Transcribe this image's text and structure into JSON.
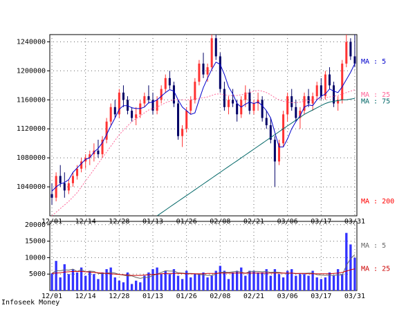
{
  "chart_data": [
    {
      "type": "candlestick",
      "title": "",
      "date_ticks": [
        "12/01",
        "12/14",
        "12/28",
        "01/13",
        "01/26",
        "02/08",
        "02/21",
        "03/06",
        "03/17",
        "03/31"
      ],
      "y_ticks": [
        1040000,
        1080000,
        1120000,
        1160000,
        1200000,
        1240000
      ],
      "ylim": [
        1000000,
        1250000
      ],
      "grid": true,
      "ohlc": [
        [
          1030000,
          1045000,
          1015000,
          1025000
        ],
        [
          1025000,
          1060000,
          1020000,
          1055000
        ],
        [
          1055000,
          1070000,
          1040000,
          1045000
        ],
        [
          1045000,
          1060000,
          1025000,
          1035000
        ],
        [
          1035000,
          1050000,
          1030000,
          1045000
        ],
        [
          1045000,
          1060000,
          1040000,
          1055000
        ],
        [
          1055000,
          1070000,
          1050000,
          1065000
        ],
        [
          1065000,
          1080000,
          1060000,
          1075000
        ],
        [
          1075000,
          1085000,
          1065000,
          1080000
        ],
        [
          1080000,
          1090000,
          1070000,
          1085000
        ],
        [
          1085000,
          1100000,
          1075000,
          1090000
        ],
        [
          1090000,
          1105000,
          1080000,
          1085000
        ],
        [
          1085000,
          1110000,
          1080000,
          1105000
        ],
        [
          1105000,
          1135000,
          1100000,
          1130000
        ],
        [
          1130000,
          1155000,
          1125000,
          1150000
        ],
        [
          1150000,
          1160000,
          1135000,
          1140000
        ],
        [
          1140000,
          1175000,
          1135000,
          1170000
        ],
        [
          1170000,
          1180000,
          1150000,
          1160000
        ],
        [
          1160000,
          1165000,
          1140000,
          1145000
        ],
        [
          1145000,
          1150000,
          1130000,
          1135000
        ],
        [
          1135000,
          1150000,
          1125000,
          1140000
        ],
        [
          1140000,
          1160000,
          1135000,
          1155000
        ],
        [
          1155000,
          1170000,
          1150000,
          1165000
        ],
        [
          1165000,
          1180000,
          1155000,
          1160000
        ],
        [
          1160000,
          1170000,
          1140000,
          1145000
        ],
        [
          1145000,
          1165000,
          1140000,
          1160000
        ],
        [
          1160000,
          1180000,
          1155000,
          1175000
        ],
        [
          1175000,
          1195000,
          1170000,
          1190000
        ],
        [
          1190000,
          1200000,
          1175000,
          1180000
        ],
        [
          1180000,
          1185000,
          1150000,
          1155000
        ],
        [
          1155000,
          1160000,
          1105000,
          1110000
        ],
        [
          1110000,
          1125000,
          1095000,
          1120000
        ],
        [
          1120000,
          1150000,
          1115000,
          1145000
        ],
        [
          1145000,
          1165000,
          1140000,
          1160000
        ],
        [
          1160000,
          1190000,
          1155000,
          1185000
        ],
        [
          1185000,
          1215000,
          1180000,
          1210000
        ],
        [
          1210000,
          1225000,
          1190000,
          1195000
        ],
        [
          1195000,
          1210000,
          1185000,
          1205000
        ],
        [
          1205000,
          1250000,
          1200000,
          1245000
        ],
        [
          1245000,
          1250000,
          1215000,
          1220000
        ],
        [
          1220000,
          1225000,
          1170000,
          1175000
        ],
        [
          1175000,
          1185000,
          1145000,
          1150000
        ],
        [
          1150000,
          1165000,
          1140000,
          1160000
        ],
        [
          1160000,
          1175000,
          1150000,
          1155000
        ],
        [
          1155000,
          1160000,
          1130000,
          1140000
        ],
        [
          1140000,
          1165000,
          1135000,
          1160000
        ],
        [
          1160000,
          1180000,
          1150000,
          1170000
        ],
        [
          1170000,
          1175000,
          1140000,
          1145000
        ],
        [
          1145000,
          1160000,
          1140000,
          1155000
        ],
        [
          1155000,
          1170000,
          1145000,
          1160000
        ],
        [
          1160000,
          1165000,
          1130000,
          1135000
        ],
        [
          1135000,
          1145000,
          1120000,
          1125000
        ],
        [
          1125000,
          1135000,
          1100000,
          1105000
        ],
        [
          1105000,
          1110000,
          1040000,
          1075000
        ],
        [
          1075000,
          1105000,
          1070000,
          1100000
        ],
        [
          1100000,
          1145000,
          1095000,
          1140000
        ],
        [
          1140000,
          1170000,
          1130000,
          1165000
        ],
        [
          1165000,
          1175000,
          1145000,
          1150000
        ],
        [
          1150000,
          1160000,
          1130000,
          1135000
        ],
        [
          1135000,
          1150000,
          1120000,
          1145000
        ],
        [
          1145000,
          1170000,
          1140000,
          1165000
        ],
        [
          1165000,
          1175000,
          1150000,
          1155000
        ],
        [
          1155000,
          1170000,
          1145000,
          1165000
        ],
        [
          1165000,
          1185000,
          1160000,
          1180000
        ],
        [
          1180000,
          1190000,
          1160000,
          1165000
        ],
        [
          1165000,
          1200000,
          1160000,
          1195000
        ],
        [
          1195000,
          1205000,
          1175000,
          1180000
        ],
        [
          1180000,
          1185000,
          1150000,
          1155000
        ],
        [
          1155000,
          1165000,
          1145000,
          1160000
        ],
        [
          1160000,
          1215000,
          1155000,
          1210000
        ],
        [
          1210000,
          1250000,
          1205000,
          1240000
        ],
        [
          1240000,
          1245000,
          1215000,
          1220000
        ],
        [
          1220000,
          1250000,
          1205000,
          1210000
        ]
      ],
      "ma_lines": [
        {
          "label": "MA : 5",
          "color": "#0000cc",
          "values": [
            1034000,
            1040000,
            1044000,
            1046000,
            1050000,
            1060000,
            1066000,
            1072000,
            1078000,
            1080000,
            1088000,
            1093000,
            1101000,
            1112000,
            1124000,
            1135000,
            1147000,
            1152000,
            1152000,
            1149000,
            1148000,
            1148000,
            1150000,
            1156000,
            1157000,
            1160000,
            1165000,
            1170000,
            1174000,
            1172000,
            1160000,
            1150000,
            1145000,
            1140000,
            1142000,
            1160000,
            1177000,
            1190000,
            1202000,
            1212000,
            1209000,
            1195000,
            1178000,
            1168000,
            1155000,
            1150000,
            1154000,
            1157000,
            1155000,
            1157000,
            1152000,
            1145000,
            1135000,
            1115000,
            1095000,
            1095000,
            1106000,
            1120000,
            1130000,
            1138000,
            1150000,
            1153000,
            1152000,
            1160000,
            1165000,
            1168000,
            1175000,
            1172000,
            1170000,
            1178000,
            1188000,
            1198000,
            1210000
          ]
        },
        {
          "label": "MA : 25",
          "color": "#ff6699",
          "values": [
            1000000,
            1005000,
            1010000,
            1015000,
            1020000,
            1026000,
            1032000,
            1040000,
            1048000,
            1056000,
            1064000,
            1072000,
            1080000,
            1088000,
            1096000,
            1104000,
            1112000,
            1118000,
            1124000,
            1130000,
            1134000,
            1138000,
            1142000,
            1146000,
            1148000,
            1150000,
            1153000,
            1156000,
            1158000,
            1160000,
            1160000,
            1160000,
            1160000,
            1160000,
            1161000,
            1162000,
            1163000,
            1164000,
            1166000,
            1168000,
            1168000,
            1167000,
            1166000,
            1166000,
            1166000,
            1167000,
            1168000,
            1170000,
            1172000,
            1173000,
            1172000,
            1170000,
            1167000,
            1163000,
            1160000,
            1158000,
            1157000,
            1156000,
            1156000,
            1157000,
            1158000,
            1159000,
            1160000,
            1161000,
            1162000,
            1163000,
            1164000,
            1165000,
            1166000,
            1168000,
            1170000,
            1172000,
            1174000
          ]
        },
        {
          "label": "MA : 75",
          "color": "#006666",
          "values": [
            null,
            null,
            null,
            null,
            null,
            null,
            null,
            null,
            null,
            null,
            null,
            null,
            null,
            null,
            null,
            null,
            null,
            null,
            null,
            null,
            null,
            null,
            null,
            null,
            null,
            1000000,
            1004000,
            1008000,
            1012000,
            1016000,
            1020000,
            1024000,
            1028000,
            1032000,
            1036000,
            1040000,
            1044000,
            1048000,
            1052000,
            1056000,
            1060000,
            1064000,
            1068000,
            1072000,
            1076000,
            1080000,
            1084000,
            1088000,
            1092000,
            1096000,
            1100000,
            1104000,
            1108000,
            1112000,
            1116000,
            1120000,
            1124000,
            1128000,
            1132000,
            1136000,
            1140000,
            1143000,
            1146000,
            1149000,
            1152000,
            1155000,
            1157000,
            1158000,
            1159000,
            1160000,
            1160000,
            1161000,
            1162000
          ]
        },
        {
          "label": "MA : 200",
          "color": "#ff0000",
          "values": []
        }
      ]
    },
    {
      "type": "bar",
      "y_ticks": [
        5000,
        10000,
        15000,
        20000
      ],
      "ylim": [
        0,
        21000
      ],
      "grid": true,
      "volume": [
        5200,
        9000,
        4000,
        8000,
        5000,
        6500,
        5500,
        7000,
        4500,
        6000,
        5000,
        3500,
        5500,
        6500,
        7000,
        4000,
        3000,
        2500,
        5500,
        2000,
        3000,
        2500,
        4500,
        5500,
        6500,
        7000,
        5000,
        6000,
        5000,
        6500,
        4500,
        3500,
        6000,
        4000,
        5000,
        5000,
        5500,
        4000,
        4500,
        6000,
        7500,
        6000,
        3500,
        5500,
        6000,
        7000,
        4500,
        6000,
        6000,
        5500,
        5500,
        6500,
        4500,
        6500,
        5000,
        4000,
        6000,
        6500,
        4500,
        5000,
        5000,
        4500,
        6000,
        4000,
        3500,
        4000,
        5500,
        4500,
        6500,
        5000,
        17500,
        14000,
        10000
      ],
      "ma_lines": [
        {
          "label": "MA : 5",
          "color": "#666666",
          "values": [
            5200,
            6000,
            6000,
            6300,
            6200,
            6500,
            5800,
            6400,
            5700,
            5900,
            5800,
            5200,
            5100,
            5300,
            5500,
            5300,
            4900,
            4700,
            4400,
            4500,
            4000,
            3700,
            4000,
            4000,
            4600,
            5000,
            5500,
            6000,
            5900,
            5900,
            5400,
            5300,
            5200,
            5200,
            5100,
            4900,
            4800,
            4600,
            4600,
            5000,
            5500,
            5600,
            5500,
            5700,
            5800,
            5600,
            5200,
            5800,
            5800,
            5800,
            5700,
            5800,
            5500,
            5600,
            5500,
            5300,
            5200,
            5300,
            5100,
            5200,
            5200,
            5300,
            5300,
            4800,
            4700,
            4600,
            4700,
            4600,
            4800,
            4700,
            7600,
            9700,
            10900
          ]
        },
        {
          "label": "MA : 25",
          "color": "#cc0000",
          "values": [
            5200,
            5300,
            5400,
            5600,
            5700,
            5800,
            5800,
            5800,
            5700,
            5600,
            5500,
            5400,
            5300,
            5200,
            5100,
            5000,
            4900,
            4800,
            4700,
            4600,
            4600,
            4600,
            4700,
            4800,
            4900,
            5000,
            5100,
            5200,
            5200,
            5200,
            5200,
            5200,
            5100,
            5100,
            5100,
            5100,
            5100,
            5200,
            5200,
            5200,
            5300,
            5300,
            5300,
            5300,
            5300,
            5300,
            5300,
            5300,
            5300,
            5300,
            5300,
            5300,
            5300,
            5300,
            5300,
            5300,
            5300,
            5300,
            5200,
            5200,
            5200,
            5100,
            5100,
            5100,
            5100,
            5100,
            5100,
            5200,
            5300,
            5500,
            5900,
            6300,
            6600
          ]
        }
      ]
    }
  ],
  "credit": "Infoseek Money",
  "colors": {
    "up": "#ff3333",
    "down": "#000066",
    "vol": "#3333ff",
    "grid": "#666666"
  }
}
